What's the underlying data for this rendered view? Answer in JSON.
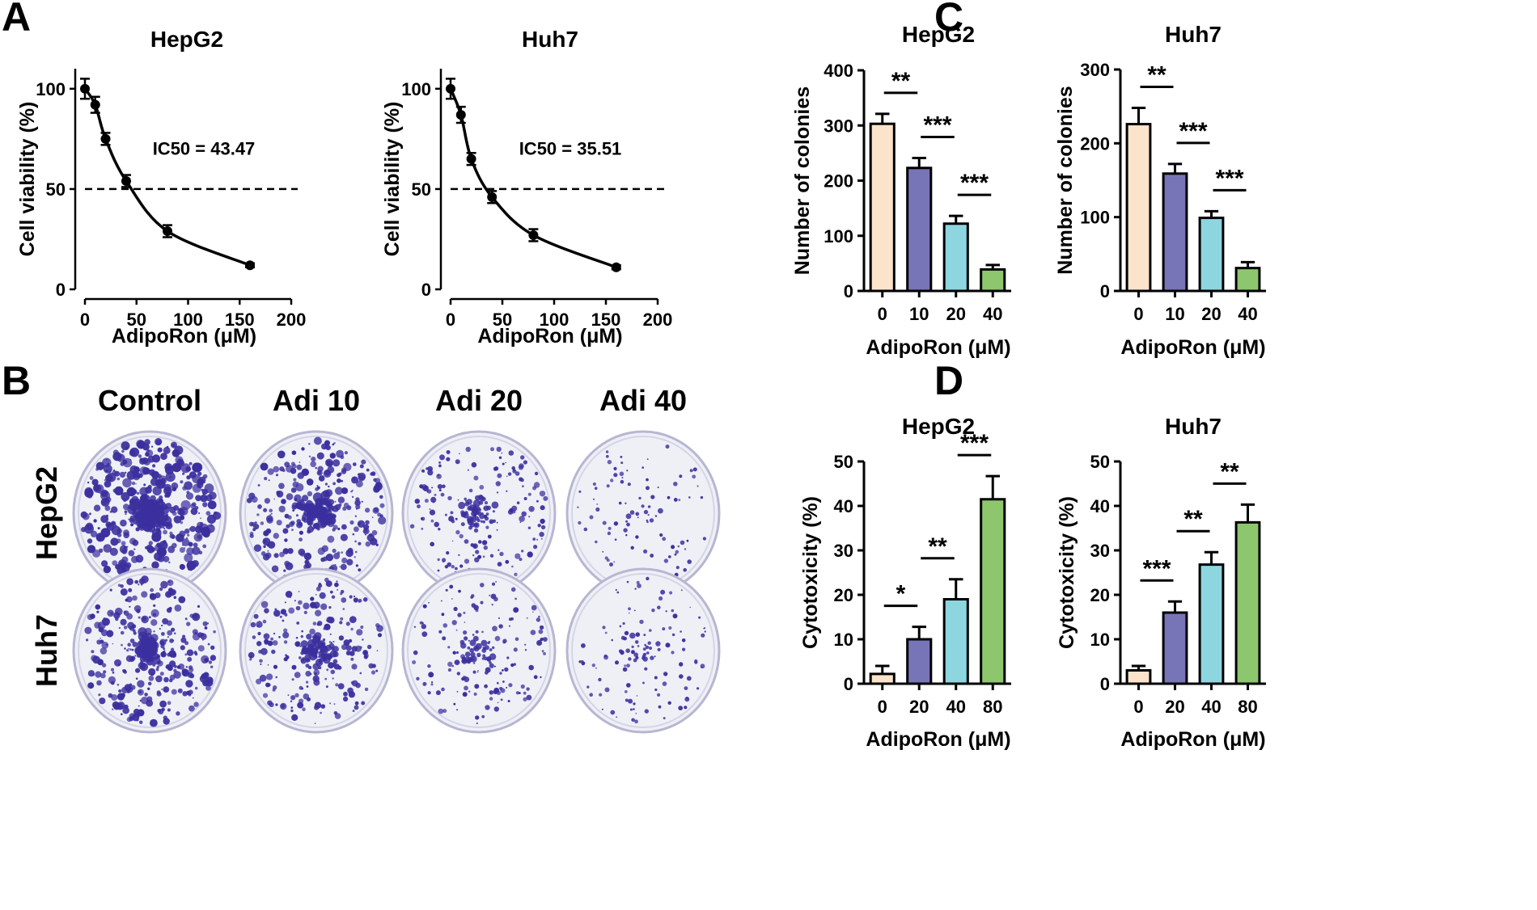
{
  "panels": {
    "a": "A",
    "b": "B",
    "c": "C",
    "d": "D"
  },
  "panel_b": {
    "columns": [
      "Control",
      "Adi 10",
      "Adi 20",
      "Adi 40"
    ],
    "rows": [
      "HepG2",
      "Huh7"
    ],
    "colony_density": [
      [
        1.0,
        0.75,
        0.4,
        0.13
      ],
      [
        0.75,
        0.55,
        0.33,
        0.2
      ]
    ]
  },
  "colors": {
    "bar_0": "#FCE4CC",
    "bar_1": "#7774B8",
    "bar_2": "#8DD6E0",
    "bar_3": "#8DC66D",
    "colony": "#3B2F9E",
    "plate_fill": "#EEF0F6"
  },
  "chart_data": [
    {
      "id": "a_hepg2",
      "type": "line",
      "title": "HepG2",
      "xlabel": "AdipoRon (μM)",
      "ylabel": "Cell viability (%)",
      "xlim": [
        0,
        200
      ],
      "ylim": [
        0,
        110
      ],
      "xticks": [
        0,
        50,
        100,
        150,
        200
      ],
      "yticks": [
        0,
        50,
        100
      ],
      "x": [
        0,
        10,
        20,
        40,
        80,
        160
      ],
      "y": [
        100,
        92,
        75,
        54,
        29,
        12
      ],
      "err": [
        5,
        4,
        3,
        3,
        3,
        1
      ],
      "ic50": 43.47,
      "reference_y": 50,
      "annotation": "IC50 = 43.47"
    },
    {
      "id": "a_huh7",
      "type": "line",
      "title": "Huh7",
      "xlabel": "AdipoRon (μM)",
      "ylabel": "Cell viability (%)",
      "xlim": [
        0,
        200
      ],
      "ylim": [
        0,
        110
      ],
      "xticks": [
        0,
        50,
        100,
        150,
        200
      ],
      "yticks": [
        0,
        50,
        100
      ],
      "x": [
        0,
        10,
        20,
        40,
        80,
        160
      ],
      "y": [
        100,
        87,
        65,
        46,
        27,
        11
      ],
      "err": [
        5,
        4,
        3,
        3,
        3,
        1
      ],
      "ic50": 35.51,
      "reference_y": 50,
      "annotation": "IC50 = 35.51"
    },
    {
      "id": "c_hepg2",
      "type": "bar",
      "title": "HepG2",
      "xlabel": "AdipoRon (μM)",
      "ylabel": "Number of colonies",
      "categories": [
        "0",
        "10",
        "20",
        "40"
      ],
      "values": [
        303,
        223,
        122,
        39
      ],
      "err": [
        18,
        18,
        14,
        8
      ],
      "ylim": [
        0,
        400
      ],
      "yticks": [
        0,
        100,
        200,
        300,
        400
      ],
      "significance": [
        {
          "from": 0,
          "to": 1,
          "label": "**"
        },
        {
          "from": 1,
          "to": 2,
          "label": "***"
        },
        {
          "from": 2,
          "to": 3,
          "label": "***"
        }
      ]
    },
    {
      "id": "c_huh7",
      "type": "bar",
      "title": "Huh7",
      "xlabel": "AdipoRon (μM)",
      "ylabel": "Number of colonies",
      "categories": [
        "0",
        "10",
        "20",
        "40"
      ],
      "values": [
        226,
        159,
        99,
        31
      ],
      "err": [
        22,
        13,
        9,
        8
      ],
      "ylim": [
        0,
        300
      ],
      "yticks": [
        0,
        100,
        200,
        300
      ],
      "significance": [
        {
          "from": 0,
          "to": 1,
          "label": "**"
        },
        {
          "from": 1,
          "to": 2,
          "label": "***"
        },
        {
          "from": 2,
          "to": 3,
          "label": "***"
        }
      ]
    },
    {
      "id": "d_hepg2",
      "type": "bar",
      "title": "HepG2",
      "xlabel": "AdipoRon (μM)",
      "ylabel": "Cytotoxicity (%)",
      "categories": [
        "0",
        "20",
        "40",
        "80"
      ],
      "values": [
        2.2,
        10,
        19,
        41.5
      ],
      "err": [
        1.8,
        2.8,
        4.5,
        5.2
      ],
      "ylim": [
        0,
        50
      ],
      "yticks": [
        0,
        10,
        20,
        30,
        40,
        50
      ],
      "significance": [
        {
          "from": 0,
          "to": 1,
          "label": "*"
        },
        {
          "from": 1,
          "to": 2,
          "label": "**"
        },
        {
          "from": 2,
          "to": 3,
          "label": "***"
        }
      ]
    },
    {
      "id": "d_huh7",
      "type": "bar",
      "title": "Huh7",
      "xlabel": "AdipoRon (μM)",
      "ylabel": "Cytotoxicity (%)",
      "categories": [
        "0",
        "20",
        "40",
        "80"
      ],
      "values": [
        3,
        16,
        26.8,
        36.3
      ],
      "err": [
        1,
        2.5,
        2.8,
        4
      ],
      "ylim": [
        0,
        50
      ],
      "yticks": [
        0,
        10,
        20,
        30,
        40,
        50
      ],
      "significance": [
        {
          "from": 0,
          "to": 1,
          "label": "***"
        },
        {
          "from": 1,
          "to": 2,
          "label": "**"
        },
        {
          "from": 2,
          "to": 3,
          "label": "**"
        }
      ]
    }
  ]
}
